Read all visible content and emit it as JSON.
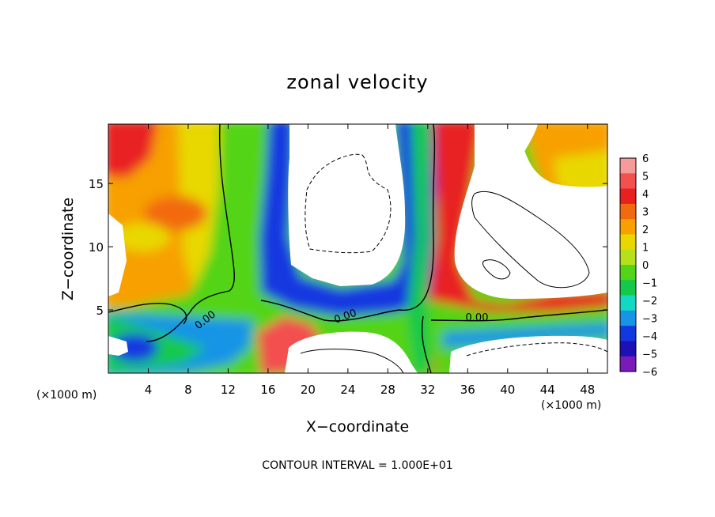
{
  "chart_data": {
    "type": "heatmap",
    "title": "zonal velocity",
    "xlabel": "X−coordinate",
    "ylabel": "Z−coordinate",
    "x_units_note_left": "(×1000 m)",
    "x_units_note_right": "(×1000 m)",
    "footer": "CONTOUR INTERVAL = 1.000E+01",
    "xlim": [
      0,
      50
    ],
    "ylim": [
      0,
      19.7
    ],
    "x_ticks": [
      4,
      8,
      12,
      16,
      20,
      24,
      28,
      32,
      36,
      40,
      44,
      48
    ],
    "y_ticks": [
      5,
      10,
      15
    ],
    "colorbar": {
      "levels": [
        6,
        5,
        4,
        3,
        2,
        1,
        0,
        -1,
        -2,
        -3,
        -4,
        -5,
        -6
      ],
      "colors": [
        "#f79a9a",
        "#f35050",
        "#e82020",
        "#f26a10",
        "#f7a000",
        "#e8d800",
        "#b4e01c",
        "#52d418",
        "#14c94a",
        "#12d8c4",
        "#1694e6",
        "#1238e0",
        "#1e10b4",
        "#7a1ab8"
      ]
    },
    "contour_labels": [
      "0.00",
      "0.00",
      "0.00"
    ],
    "regions": [
      {
        "name": "white-upper-center",
        "x": [
          18.3,
          30.5
        ],
        "z": [
          7.5,
          19.7
        ],
        "value": -10
      },
      {
        "name": "white-right",
        "x": [
          34.5,
          50
        ],
        "z": [
          6.5,
          17.5
        ],
        "value": 10
      },
      {
        "name": "white-lower-center",
        "x": [
          17,
          32
        ],
        "z": [
          0,
          3.5
        ],
        "value": 10
      },
      {
        "name": "white-lower-right",
        "x": [
          34,
          50
        ],
        "z": [
          0,
          3
        ],
        "value": -10
      },
      {
        "name": "red-top-left",
        "x": [
          0,
          3
        ],
        "z": [
          17,
          19.7
        ],
        "value": 5
      },
      {
        "name": "red-column",
        "x": [
          33,
          35
        ],
        "z": [
          0,
          19.7
        ],
        "value": 5
      },
      {
        "name": "green-column",
        "x": [
          9.5,
          16
        ],
        "z": [
          5,
          19.7
        ],
        "value": 0
      },
      {
        "name": "blue-lower-left",
        "x": [
          0,
          9
        ],
        "z": [
          0,
          4.5
        ],
        "value": -4
      }
    ]
  }
}
